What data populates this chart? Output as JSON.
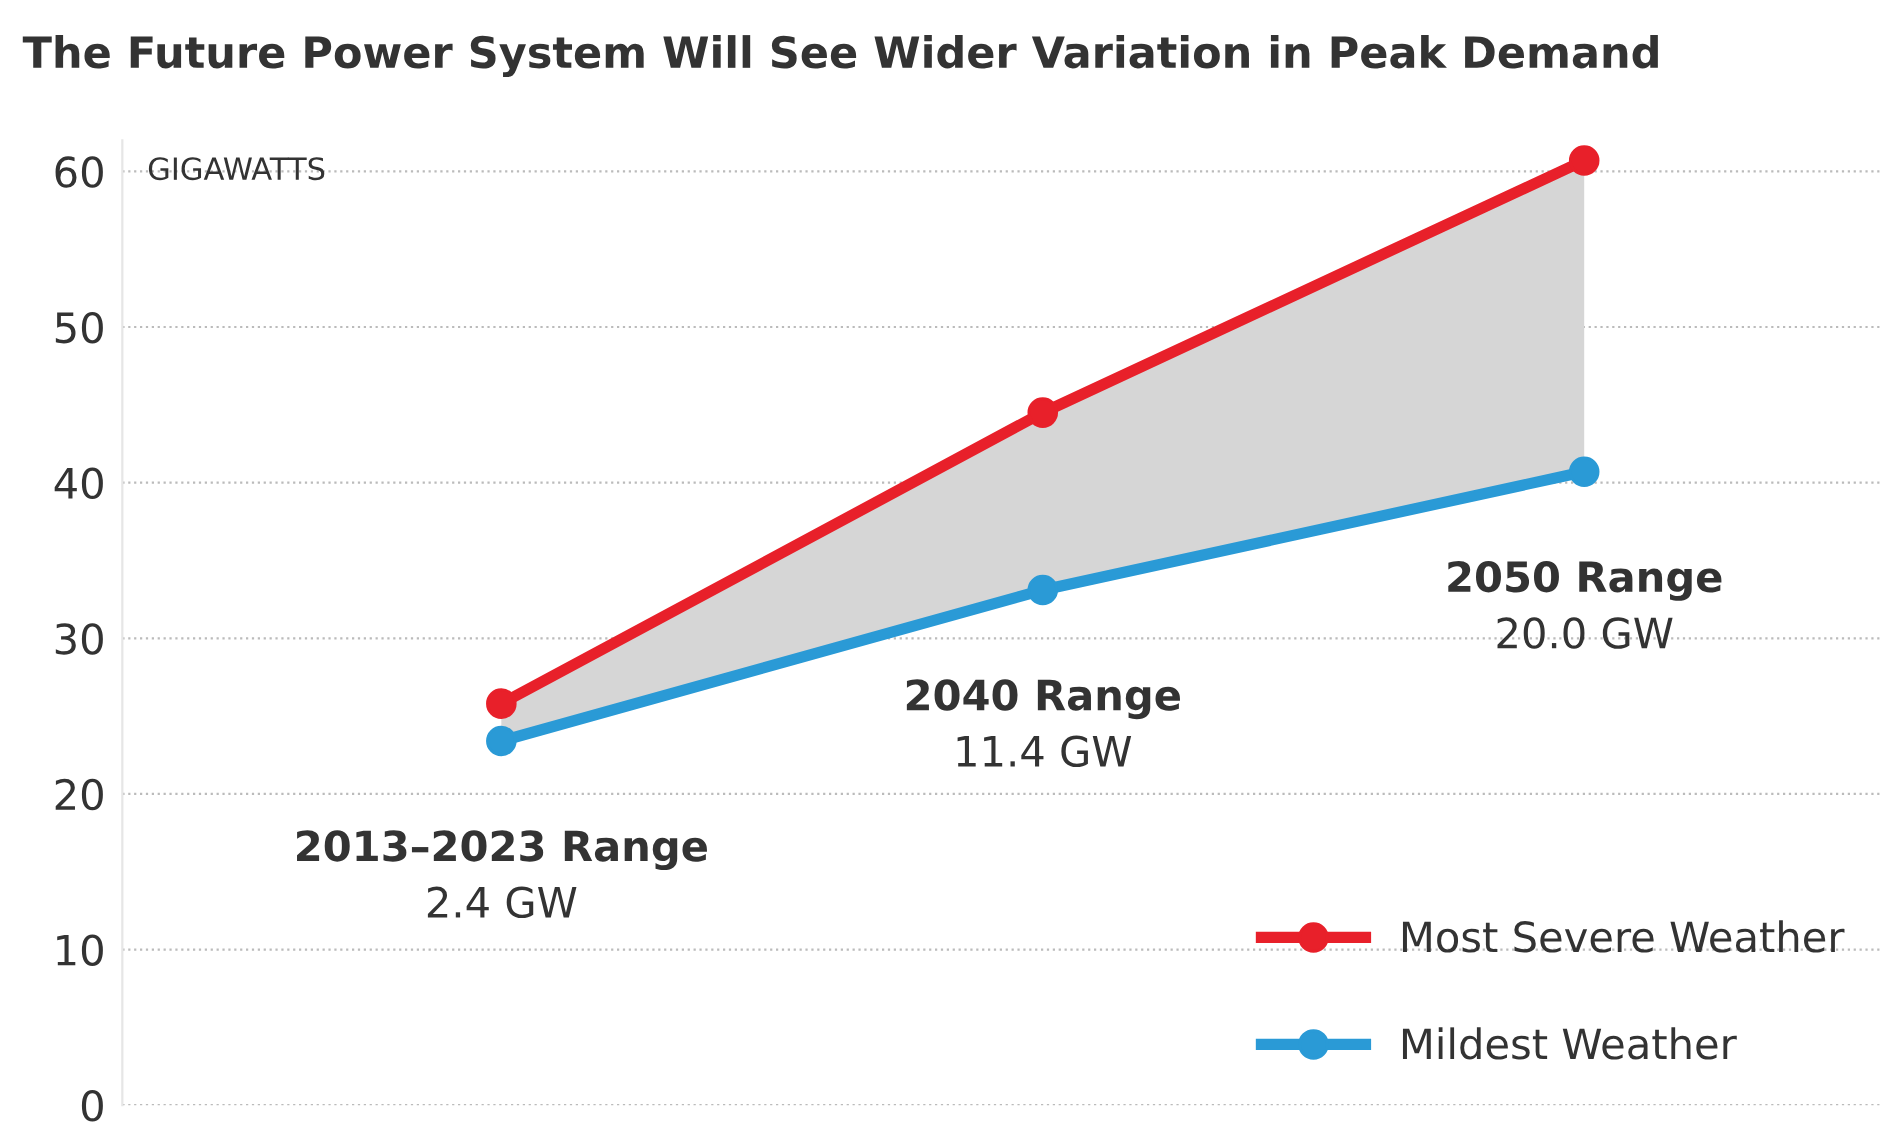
{
  "chart_data": {
    "type": "line",
    "title": "The Future Power System Will See Wider Variation in Peak Demand",
    "ylabel": "GIGAWATTS",
    "categories": [
      null,
      null,
      null
    ],
    "series": [
      {
        "name": "Most Severe Weather",
        "color": "#e8202a",
        "values": [
          25.8,
          44.5,
          60.7
        ],
        "lower": [
          23.4,
          33.1,
          40.7
        ],
        "upper": [
          25.8,
          44.5,
          60.7
        ]
      },
      {
        "name": "Mildest Weather",
        "color": "#2a9ad6",
        "values": [
          23.4,
          33.1,
          40.7
        ]
      }
    ],
    "annotations": [
      "2013–2023 Range",
      "2.4 GW",
      "2040 Range",
      "11.4 GW",
      "2050 Range",
      "20.0 GW"
    ],
    "ylim": [
      0,
      62
    ],
    "yticks": [
      0,
      10,
      20,
      30,
      40,
      50,
      60
    ],
    "grid": "y",
    "legend": "bottom right",
    "marker": "circle",
    "line_style": "solid"
  }
}
